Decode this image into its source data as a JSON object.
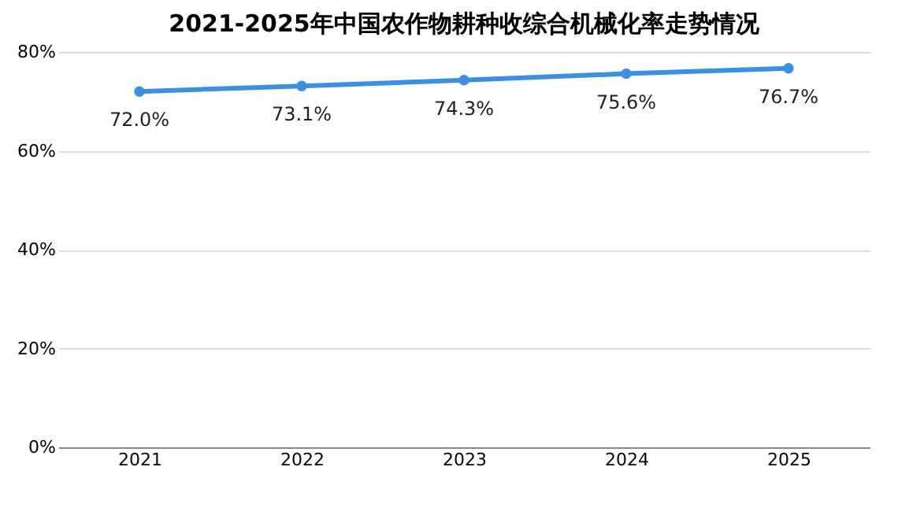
{
  "chart_data": {
    "type": "line",
    "title": "2021-2025年中国农作物耕种收综合机械化率走势情况",
    "categories": [
      "2021",
      "2022",
      "2023",
      "2024",
      "2025"
    ],
    "series": [
      {
        "color": "#3d8fe0",
        "values": [
          72.0,
          73.1,
          74.3,
          75.6,
          76.7
        ],
        "value_labels": [
          "72.0%",
          "73.1%",
          "74.3%",
          "75.6%",
          "76.7%"
        ]
      }
    ],
    "ylim": [
      0,
      80
    ],
    "yticks": [
      {
        "value": 0,
        "label": "0%"
      },
      {
        "value": 20,
        "label": "20%"
      },
      {
        "value": 40,
        "label": "40%"
      },
      {
        "value": 60,
        "label": "60%"
      },
      {
        "value": 80,
        "label": "80%"
      }
    ],
    "grid": "y",
    "marker": "circle",
    "line_style": "solid"
  }
}
